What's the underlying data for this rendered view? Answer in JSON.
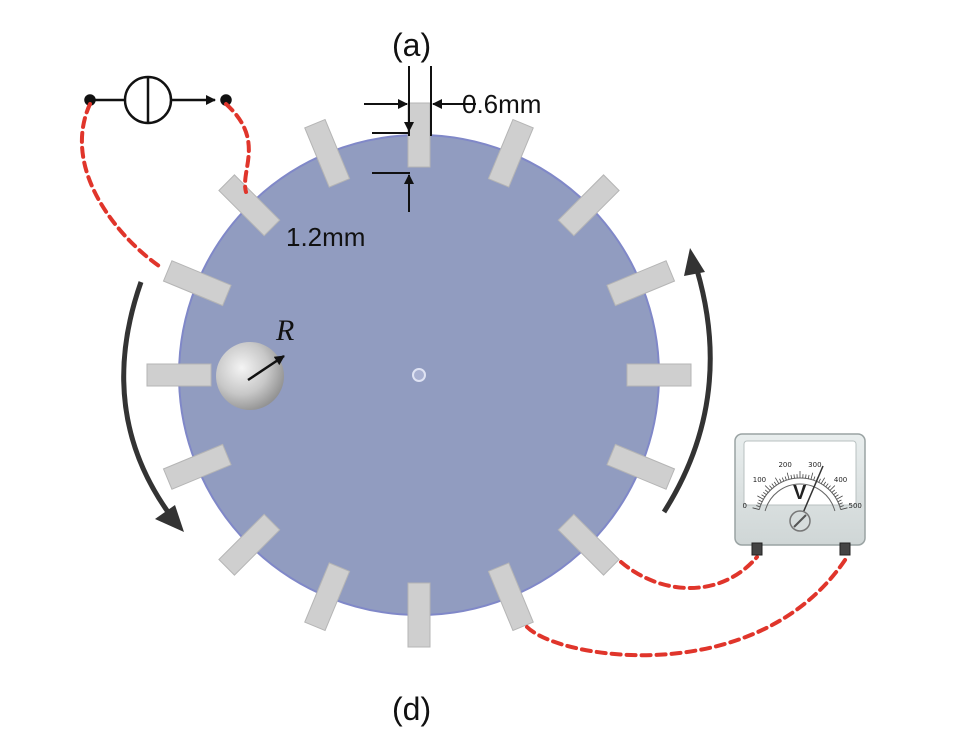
{
  "labels": {
    "top": "(a)",
    "bottom": "(d)",
    "radius": "R",
    "electrode_width": "0.6mm",
    "electrode_length": "1.2mm"
  },
  "voltmeter": {
    "letter": "V",
    "scale": [
      "0",
      "100",
      "200",
      "300",
      "400",
      "500"
    ]
  },
  "colors": {
    "disk": "#919cc0",
    "disk_edge": "#8088c8",
    "electrode": "#cfcfcf",
    "wire": "#e0352b",
    "arrow": "#333333"
  },
  "icons": {
    "current_source": "current-source-icon",
    "voltmeter": "voltmeter-icon"
  }
}
